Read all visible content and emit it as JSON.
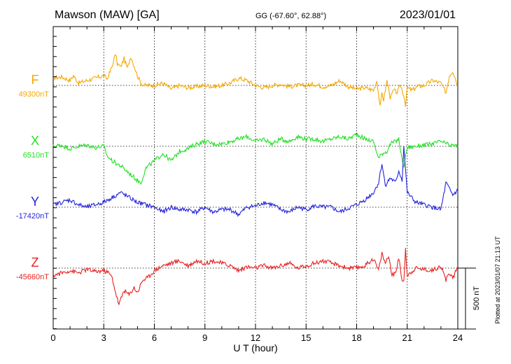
{
  "header": {
    "station": "Mawson (MAW)  [GA]",
    "coords": "GG (-67.60°,  62.88°)",
    "date": "2023/01/01"
  },
  "footer": {
    "plotted": "Plotted at 2023/01/07 21:13 UT"
  },
  "chart_data": {
    "type": "line",
    "xlabel": "U T (hour)",
    "xlim": [
      0,
      24
    ],
    "xticks": [
      "0",
      "3",
      "6",
      "9",
      "12",
      "15",
      "18",
      "21",
      "24"
    ],
    "scale_bar": "500 nT",
    "grid": "dotted vertical every 3 h, dotted baseline per trace",
    "series": [
      {
        "name": "F",
        "baseline": "49300nT",
        "color": "#F5A800",
        "x": [
          0,
          0.5,
          1,
          1.2,
          1.5,
          2,
          2.5,
          3,
          3.2,
          3.5,
          3.7,
          3.8,
          4,
          4.2,
          4.4,
          4.6,
          4.8,
          5,
          5.2,
          5.4,
          6,
          6.5,
          7,
          7.5,
          8,
          8.5,
          9,
          9.5,
          10,
          10.5,
          11,
          11.5,
          12,
          12.5,
          13,
          13.5,
          14,
          14.5,
          15,
          15.5,
          16,
          16.5,
          17,
          17.5,
          18,
          18.5,
          19,
          19.2,
          19.4,
          19.5,
          19.6,
          19.8,
          20,
          20.2,
          20.4,
          20.6,
          20.8,
          20.9,
          21,
          21.3,
          21.6,
          22,
          22.5,
          23,
          23.3,
          23.5,
          23.7,
          23.9,
          24
        ],
        "y": [
          60,
          70,
          40,
          80,
          20,
          40,
          60,
          80,
          50,
          160,
          260,
          180,
          150,
          220,
          140,
          240,
          160,
          80,
          20,
          0,
          0,
          20,
          -30,
          0,
          -20,
          -10,
          0,
          -10,
          0,
          20,
          60,
          40,
          0,
          -20,
          0,
          10,
          -10,
          0,
          0,
          10,
          -10,
          0,
          40,
          -10,
          -30,
          -20,
          -40,
          40,
          -180,
          -60,
          -120,
          40,
          -100,
          -40,
          -60,
          0,
          -80,
          -160,
          -20,
          -40,
          -10,
          0,
          40,
          20,
          -60,
          80,
          120,
          40,
          0
        ]
      },
      {
        "name": "X",
        "baseline": "6510nT",
        "color": "#22E022",
        "x": [
          0,
          0.5,
          1,
          1.5,
          2,
          2.5,
          3,
          3.2,
          3.5,
          4,
          4.5,
          5,
          5.2,
          5.5,
          6,
          6.5,
          7,
          7.5,
          8,
          8.5,
          9,
          9.5,
          10,
          10.5,
          11,
          11.5,
          12,
          12.5,
          13,
          13.5,
          14,
          14.5,
          15,
          15.5,
          16,
          16.5,
          17,
          17.5,
          18,
          18.5,
          19,
          19.3,
          19.5,
          19.8,
          20,
          20.3,
          20.5,
          20.7,
          20.8,
          21,
          21.5,
          22,
          22.5,
          23,
          23.5,
          24
        ],
        "y": [
          0,
          10,
          -20,
          0,
          10,
          -10,
          0,
          -80,
          -120,
          -160,
          -220,
          -280,
          -300,
          -180,
          -120,
          -60,
          -120,
          -40,
          -20,
          20,
          40,
          20,
          20,
          40,
          60,
          80,
          40,
          60,
          20,
          60,
          40,
          80,
          60,
          60,
          40,
          60,
          80,
          60,
          100,
          60,
          40,
          -100,
          -60,
          -40,
          20,
          40,
          60,
          -120,
          -160,
          -10,
          0,
          10,
          20,
          40,
          10,
          0
        ]
      },
      {
        "name": "Y",
        "baseline": "-17420nT",
        "color": "#2222DD",
        "x": [
          0,
          0.5,
          1,
          1.5,
          2,
          2.5,
          3,
          3.5,
          4,
          4.5,
          5,
          5.5,
          6,
          6.5,
          7,
          7.5,
          8,
          8.5,
          9,
          9.5,
          10,
          10.5,
          11,
          11.5,
          12,
          12.5,
          13,
          13.5,
          14,
          14.5,
          15,
          15.5,
          16,
          16.5,
          17,
          17.5,
          18,
          18.5,
          19,
          19.3,
          19.5,
          19.7,
          20,
          20.3,
          20.5,
          20.7,
          20.8,
          21,
          21.5,
          22,
          22.5,
          23,
          23.3,
          23.7,
          24
        ],
        "y": [
          20,
          40,
          60,
          20,
          0,
          20,
          40,
          80,
          120,
          80,
          40,
          20,
          0,
          -40,
          0,
          -20,
          -20,
          -40,
          0,
          -40,
          -20,
          -20,
          -60,
          0,
          10,
          40,
          20,
          -20,
          -40,
          0,
          -20,
          10,
          0,
          0,
          -40,
          -10,
          20,
          60,
          120,
          200,
          360,
          180,
          240,
          200,
          300,
          220,
          500,
          120,
          40,
          20,
          0,
          -20,
          200,
          100,
          140
        ]
      },
      {
        "name": "Z",
        "baseline": "-45660nT",
        "color": "#E82020",
        "x": [
          0,
          0.5,
          1,
          1.5,
          2,
          2.5,
          3,
          3.3,
          3.5,
          3.7,
          3.9,
          4.2,
          4.5,
          4.8,
          5,
          5.3,
          5.6,
          6,
          6.5,
          7,
          7.5,
          8,
          8.5,
          9,
          9.5,
          10,
          10.5,
          11,
          11.5,
          12,
          12.5,
          13,
          13.5,
          14,
          14.5,
          15,
          15.5,
          16,
          16.5,
          17,
          17.5,
          18,
          18.5,
          19,
          19.3,
          19.5,
          19.7,
          19.9,
          20.1,
          20.3,
          20.5,
          20.7,
          20.8,
          20.9,
          21,
          21.5,
          22,
          22.5,
          23,
          23.3,
          23.5,
          23.7,
          24
        ],
        "y": [
          -60,
          -40,
          -20,
          -40,
          -10,
          -30,
          -20,
          -40,
          -80,
          -200,
          -300,
          -180,
          -220,
          -160,
          -200,
          -100,
          -80,
          -20,
          20,
          40,
          60,
          20,
          60,
          40,
          60,
          40,
          20,
          -20,
          10,
          0,
          20,
          0,
          20,
          40,
          0,
          20,
          40,
          60,
          40,
          20,
          0,
          0,
          20,
          80,
          -20,
          120,
          40,
          100,
          -60,
          -40,
          80,
          -100,
          -120,
          160,
          -60,
          0,
          -10,
          -20,
          20,
          -100,
          -40,
          -80,
          0
        ]
      }
    ]
  }
}
